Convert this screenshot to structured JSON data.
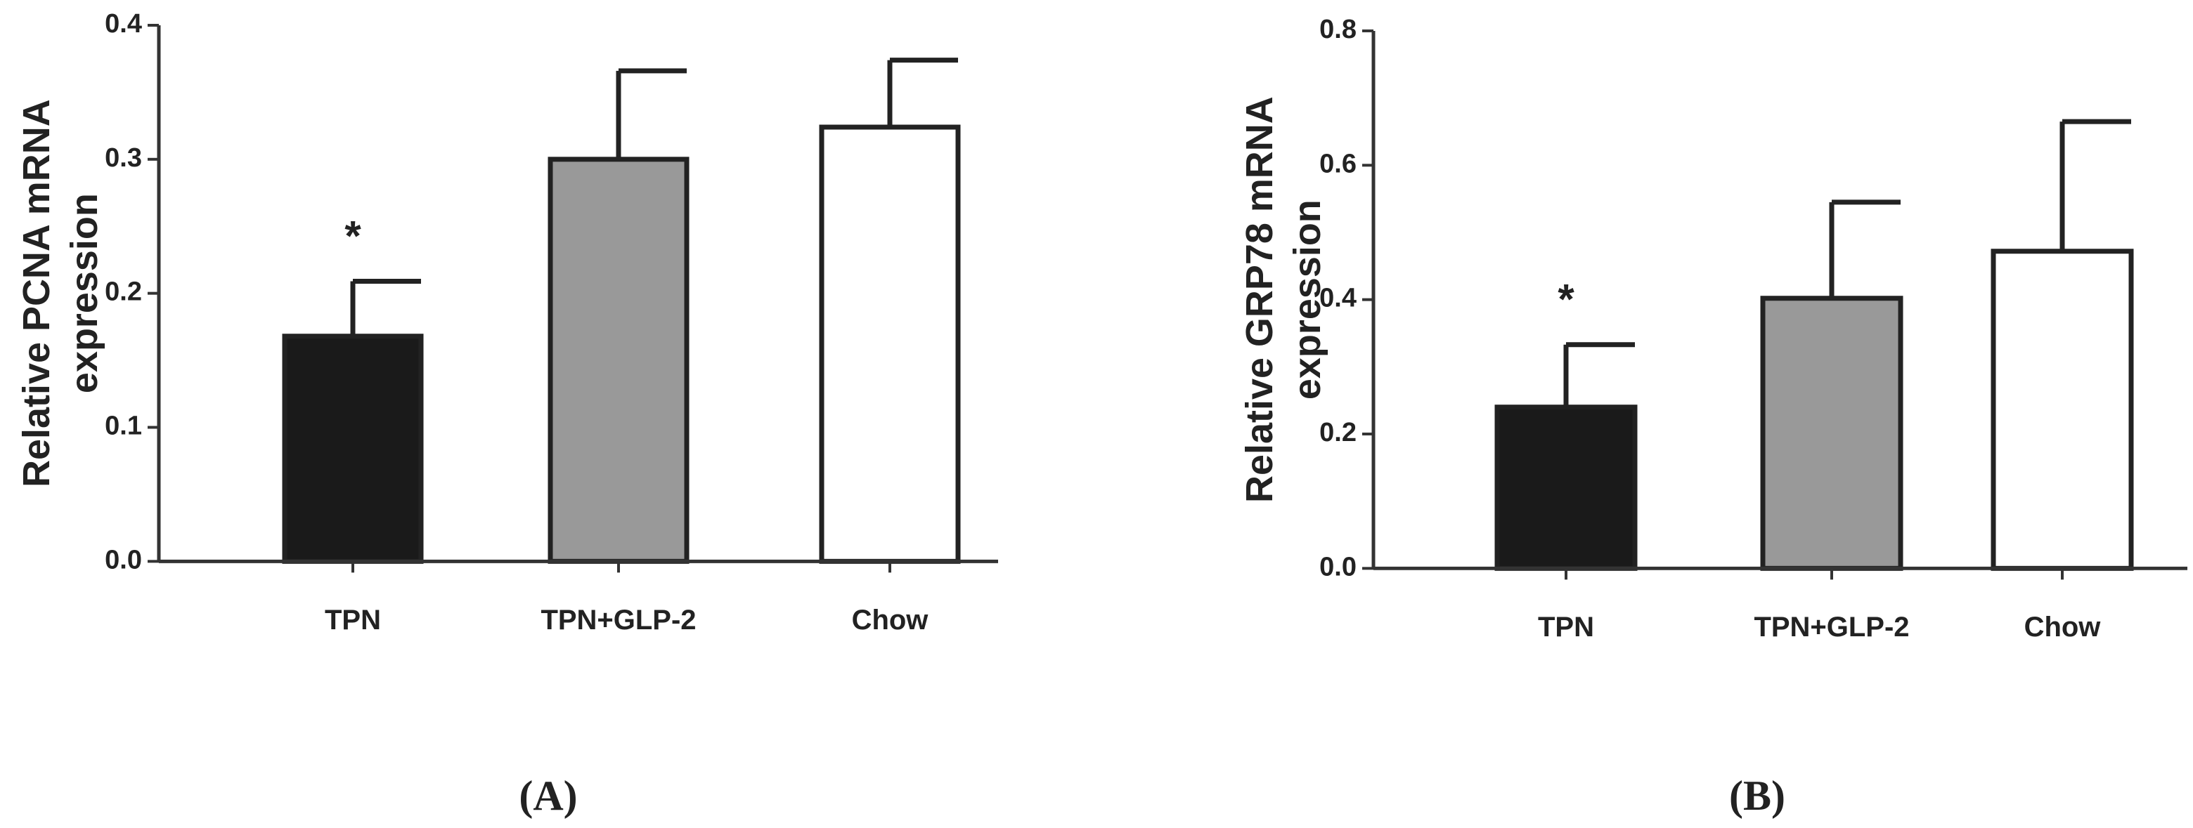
{
  "chart_data": [
    {
      "type": "bar",
      "panel_label": "(A)",
      "ylabel": [
        "Relative PCNA mRNA",
        "expression"
      ],
      "categories": [
        "TPN",
        "TPN+GLP-2",
        "Chow"
      ],
      "values": [
        0.168,
        0.3,
        0.324
      ],
      "errors": [
        0.041,
        0.066,
        0.05
      ],
      "colors": [
        "#1a1a1a",
        "#999999",
        "#ffffff"
      ],
      "annotation": "*",
      "ylim": [
        0,
        0.4
      ],
      "yticks": [
        {
          "value": 0,
          "label": "0.0"
        },
        0.1,
        0.2,
        0.3,
        0.4
      ]
    },
    {
      "type": "bar",
      "panel_label": "(B)",
      "ylabel": [
        "Relative GRP78 mRNA",
        "expression"
      ],
      "categories": [
        "TPN",
        "TPN+GLP-2",
        "Chow"
      ],
      "values": [
        0.24,
        0.402,
        0.472
      ],
      "errors": [
        0.093,
        0.143,
        0.193
      ],
      "colors": [
        "#1a1a1a",
        "#999999",
        "#ffffff"
      ],
      "annotation": "*",
      "ylim": [
        0,
        0.8
      ],
      "yticks": [
        {
          "value": 0,
          "label": "0.0"
        },
        0.2,
        0.4,
        0.6,
        0.8
      ]
    }
  ]
}
